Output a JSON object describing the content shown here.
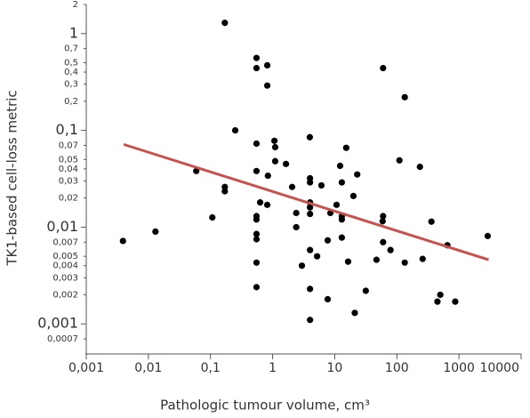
{
  "chart_data": {
    "type": "scatter",
    "xlabel": "Pathologic tumour volume, cm³",
    "ylabel": "TK1-based cell-loss metric",
    "xscale": "log",
    "yscale": "log",
    "xlim": [
      0.001,
      10000
    ],
    "ylim": [
      0.0005,
      2
    ],
    "xticks": [
      {
        "value": 0.001,
        "label": "0,001"
      },
      {
        "value": 0.01,
        "label": "0,01"
      },
      {
        "value": 0.1,
        "label": "0,1"
      },
      1,
      10,
      100,
      1000,
      10000
    ],
    "yticks": [
      2,
      1,
      {
        "value": 0.7,
        "label": "0,7"
      },
      {
        "value": 0.5,
        "label": "0,5"
      },
      {
        "value": 0.4,
        "label": "0,4"
      },
      {
        "value": 0.3,
        "label": "0,3"
      },
      {
        "value": 0.2,
        "label": "0,2"
      },
      {
        "value": 0.1,
        "label": "0,1"
      },
      {
        "value": 0.07,
        "label": "0,07"
      },
      {
        "value": 0.05,
        "label": "0,05"
      },
      {
        "value": 0.04,
        "label": "0,04"
      },
      {
        "value": 0.03,
        "label": "0,03"
      },
      {
        "value": 0.02,
        "label": "0,02"
      },
      {
        "value": 0.01,
        "label": "0,01"
      },
      {
        "value": 0.007,
        "label": "0,007"
      },
      {
        "value": 0.005,
        "label": "0,005"
      },
      {
        "value": 0.004,
        "label": "0,004"
      },
      {
        "value": 0.003,
        "label": "0,003"
      },
      {
        "value": 0.002,
        "label": "0,002"
      },
      {
        "value": 0.001,
        "label": "0,001"
      },
      {
        "value": 0.0007,
        "label": "0,0007"
      }
    ],
    "series": [
      {
        "color": "#000000",
        "x": [
          0.0039,
          0.013,
          0.059,
          0.107,
          0.17,
          0.17,
          0.17,
          0.25,
          0.55,
          0.55,
          0.55,
          0.55,
          0.55,
          0.55,
          0.55,
          0.55,
          0.55,
          0.55,
          0.82,
          0.82,
          0.63,
          0.82,
          0.84,
          1.07,
          1.1,
          1.1,
          1.64,
          2.06,
          2.4,
          2.4,
          2.96,
          3.97,
          4,
          4,
          4,
          4,
          4,
          4,
          4,
          4,
          5.2,
          6.1,
          7.7,
          7.7,
          8.5,
          10.7,
          12.2,
          13,
          13,
          13,
          13,
          15.3,
          16.4,
          20,
          21,
          23,
          31.6,
          47,
          59,
          60,
          60,
          60,
          79,
          110,
          134,
          134,
          235,
          260,
          360,
          450,
          500,
          870,
          650,
          2900
        ],
        "values": [
          0.0072,
          0.009,
          0.038,
          0.0126,
          1.29,
          0.026,
          0.0235,
          0.1,
          0.56,
          0.44,
          0.073,
          0.038,
          0.013,
          0.012,
          0.0085,
          0.0075,
          0.0043,
          0.0024,
          0.47,
          0.29,
          0.018,
          0.017,
          0.034,
          0.078,
          0.067,
          0.048,
          0.045,
          0.026,
          0.014,
          0.01,
          0.004,
          0.085,
          0.032,
          0.029,
          0.018,
          0.016,
          0.0137,
          0.0058,
          0.0023,
          0.0011,
          0.005,
          0.027,
          0.0073,
          0.0018,
          0.014,
          0.017,
          0.043,
          0.029,
          0.013,
          0.012,
          0.0078,
          0.066,
          0.0044,
          0.021,
          0.0013,
          0.035,
          0.0022,
          0.0046,
          0.0115,
          0.013,
          0.44,
          0.007,
          0.0058,
          0.049,
          0.22,
          0.0043,
          0.042,
          0.0047,
          0.0114,
          0.0017,
          0.002,
          0.0017,
          0.0065,
          0.0081
        ]
      }
    ],
    "trend": {
      "x": [
        0.004,
        3000
      ],
      "values": [
        0.0716,
        0.0046
      ],
      "color": "#c8514f"
    }
  }
}
